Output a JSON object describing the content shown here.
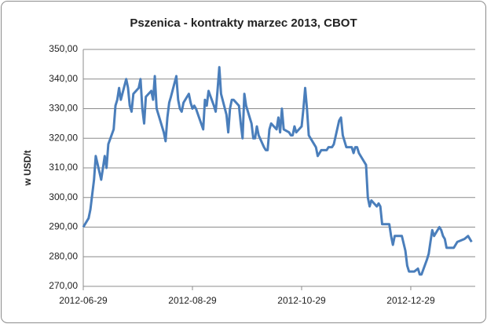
{
  "chart_data": {
    "type": "line",
    "title": "Pszenica - kontrakty marzec 2013, CBOT",
    "ylabel": "w USD/t",
    "x": [
      "2012-06-29",
      "2012-07-02",
      "2012-07-03",
      "2012-07-05",
      "2012-07-06",
      "2012-07-09",
      "2012-07-10",
      "2012-07-11",
      "2012-07-12",
      "2012-07-13",
      "2012-07-16",
      "2012-07-17",
      "2012-07-18",
      "2012-07-19",
      "2012-07-20",
      "2012-07-23",
      "2012-07-24",
      "2012-07-25",
      "2012-07-26",
      "2012-07-27",
      "2012-07-30",
      "2012-07-31",
      "2012-08-01",
      "2012-08-02",
      "2012-08-03",
      "2012-08-06",
      "2012-08-07",
      "2012-08-08",
      "2012-08-09",
      "2012-08-10",
      "2012-08-13",
      "2012-08-14",
      "2012-08-15",
      "2012-08-16",
      "2012-08-17",
      "2012-08-20",
      "2012-08-21",
      "2012-08-22",
      "2012-08-23",
      "2012-08-24",
      "2012-08-27",
      "2012-08-28",
      "2012-08-29",
      "2012-08-30",
      "2012-08-31",
      "2012-09-04",
      "2012-09-05",
      "2012-09-06",
      "2012-09-07",
      "2012-09-10",
      "2012-09-11",
      "2012-09-12",
      "2012-09-13",
      "2012-09-14",
      "2012-09-17",
      "2012-09-18",
      "2012-09-19",
      "2012-09-20",
      "2012-09-21",
      "2012-09-24",
      "2012-09-25",
      "2012-09-26",
      "2012-09-27",
      "2012-09-28",
      "2012-10-01",
      "2012-10-02",
      "2012-10-03",
      "2012-10-04",
      "2012-10-05",
      "2012-10-08",
      "2012-10-09",
      "2012-10-10",
      "2012-10-11",
      "2012-10-12",
      "2012-10-15",
      "2012-10-16",
      "2012-10-17",
      "2012-10-18",
      "2012-10-19",
      "2012-10-22",
      "2012-10-23",
      "2012-10-24",
      "2012-10-25",
      "2012-10-26",
      "2012-10-29",
      "2012-10-30",
      "2012-10-31",
      "2012-11-01",
      "2012-11-02",
      "2012-11-05",
      "2012-11-06",
      "2012-11-07",
      "2012-11-08",
      "2012-11-09",
      "2012-11-12",
      "2012-11-13",
      "2012-11-14",
      "2012-11-15",
      "2012-11-16",
      "2012-11-19",
      "2012-11-20",
      "2012-11-21",
      "2012-11-23",
      "2012-11-26",
      "2012-11-27",
      "2012-11-28",
      "2012-11-29",
      "2012-11-30",
      "2012-12-03",
      "2012-12-04",
      "2012-12-05",
      "2012-12-06",
      "2012-12-07",
      "2012-12-10",
      "2012-12-11",
      "2012-12-12",
      "2012-12-13",
      "2012-12-14",
      "2012-12-17",
      "2012-12-18",
      "2012-12-19",
      "2012-12-20",
      "2012-12-21",
      "2012-12-24",
      "2012-12-26",
      "2012-12-27",
      "2012-12-28",
      "2012-12-31",
      "2013-01-02",
      "2013-01-03",
      "2013-01-04",
      "2013-01-07",
      "2013-01-08",
      "2013-01-09",
      "2013-01-10",
      "2013-01-11",
      "2013-01-14",
      "2013-01-15",
      "2013-01-16",
      "2013-01-17",
      "2013-01-18",
      "2013-01-22",
      "2013-01-24",
      "2013-01-28",
      "2013-01-30",
      "2013-02-01"
    ],
    "series": [
      {
        "name": "Pszenica",
        "color": "#4a7ebb",
        "values": [
          290,
          293,
          296,
          306,
          314,
          306,
          310,
          314,
          310,
          318,
          323,
          331,
          333,
          337,
          333,
          340,
          337,
          331,
          329,
          335,
          337,
          340,
          330,
          325,
          334,
          336,
          333,
          341,
          330,
          328,
          322,
          319,
          327,
          332,
          334,
          341,
          333,
          330,
          329,
          332,
          335,
          332,
          330,
          331,
          330,
          323,
          333,
          331,
          336,
          331,
          329,
          336,
          344,
          335,
          328,
          322,
          330,
          333,
          333,
          331,
          325,
          320,
          335,
          331,
          325,
          320,
          320,
          324,
          321,
          317,
          316,
          316,
          323,
          325,
          323,
          327,
          322,
          330,
          323,
          322,
          321,
          321,
          324,
          322,
          324,
          330,
          337,
          330,
          321,
          318,
          317,
          314,
          315,
          316,
          316,
          317,
          317,
          317,
          318,
          326,
          327,
          321,
          317,
          317,
          315,
          317,
          317,
          315,
          312,
          311,
          300,
          297,
          299,
          297,
          298,
          297,
          291,
          291,
          291,
          287,
          284,
          287,
          287,
          287,
          282,
          277,
          275,
          275,
          276,
          274,
          274,
          279,
          281,
          285,
          289,
          287,
          290,
          289,
          287,
          286,
          283,
          283,
          285,
          286,
          287,
          285
        ]
      }
    ],
    "xlim": [
      "2012-06-29",
      "2013-02-03"
    ],
    "xticks": [
      "2012-06-29",
      "2012-08-29",
      "2012-10-29",
      "2012-12-29"
    ],
    "ylim": [
      270,
      350
    ],
    "yticks": [
      {
        "value": 270,
        "label": "270,00"
      },
      {
        "value": 280,
        "label": "280,00"
      },
      {
        "value": 290,
        "label": "290,00"
      },
      {
        "value": 300,
        "label": "300,00"
      },
      {
        "value": 310,
        "label": "310,00"
      },
      {
        "value": 320,
        "label": "320,00"
      },
      {
        "value": 330,
        "label": "330,00"
      },
      {
        "value": 340,
        "label": "340,00"
      },
      {
        "value": 350,
        "label": "350,00"
      }
    ],
    "grid": true
  }
}
